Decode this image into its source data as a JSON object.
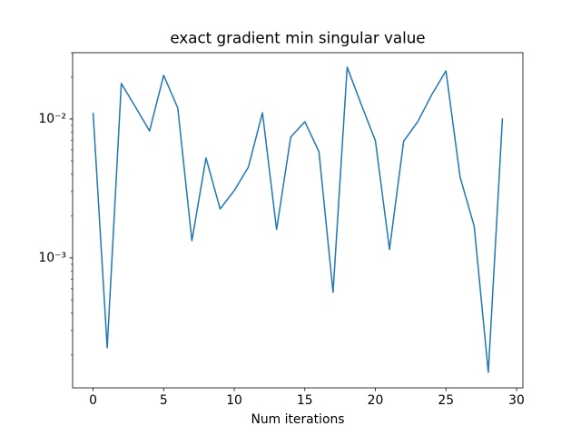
{
  "chart_data": {
    "type": "line",
    "title": "exact gradient min singular value",
    "x_label": "Num iterations",
    "x": [
      0,
      1,
      2,
      3,
      4,
      5,
      6,
      7,
      8,
      9,
      10,
      11,
      12,
      13,
      14,
      15,
      16,
      17,
      18,
      19,
      20,
      21,
      22,
      23,
      24,
      25,
      26,
      27,
      28,
      29
    ],
    "series": [
      {
        "color": "#1f77b4",
        "values": [
          0.0111,
          0.000225,
          0.018,
          0.0122,
          0.0082,
          0.0206,
          0.012,
          0.00133,
          0.00524,
          0.00225,
          0.00305,
          0.0045,
          0.0111,
          0.0016,
          0.0074,
          0.00956,
          0.00582,
          0.000565,
          0.0236,
          0.0127,
          0.00697,
          0.00115,
          0.0069,
          0.00956,
          0.015,
          0.0222,
          0.00382,
          0.00169,
          0.00015,
          0.0101
        ]
      }
    ],
    "xlim": [
      -1.45,
      30.45
    ],
    "xticks": [
      0,
      5,
      10,
      15,
      20,
      25,
      30
    ],
    "ylim": [
      0.000116,
      0.03
    ],
    "log_y": true,
    "yticks": [
      {
        "value": 0.001,
        "label": "10⁻³"
      },
      {
        "value": 0.01,
        "label": "10⁻²"
      }
    ],
    "yminorticks": [
      0.0002,
      0.0003,
      0.0004,
      0.0005,
      0.0006,
      0.0007,
      0.0008,
      0.0009,
      0.002,
      0.003,
      0.004,
      0.005,
      0.006,
      0.007,
      0.008,
      0.009,
      0.02,
      0.03
    ],
    "grid": false
  }
}
